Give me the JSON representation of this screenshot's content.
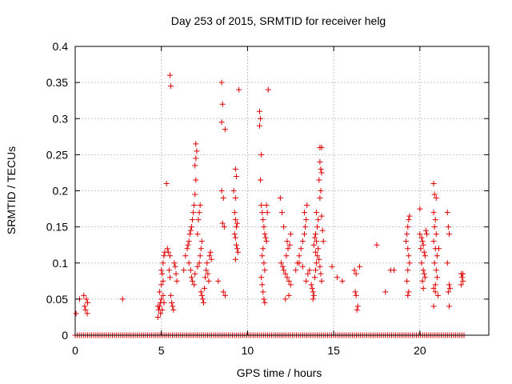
{
  "chart_data": {
    "type": "scatter",
    "title": "Day 253 of 2015, SRMTID for receiver helg",
    "xlabel": "GPS time / hours",
    "ylabel": "SRMTID / TECUs",
    "xlim": [
      0,
      24
    ],
    "ylim": [
      0,
      0.4
    ],
    "xticks": [
      0,
      5,
      10,
      15,
      20
    ],
    "yticks": [
      0,
      0.05,
      0.1,
      0.15,
      0.2,
      0.25,
      0.3,
      0.35,
      0.4
    ],
    "xtick_labels": [
      "0",
      "5",
      "10",
      "15",
      "20"
    ],
    "ytick_labels": [
      "0",
      "0.05",
      "0.1",
      "0.15",
      "0.2",
      "0.25",
      "0.3",
      "0.35",
      "0.4"
    ],
    "grid": true,
    "marker": "+",
    "color": "#dd0000",
    "zero_band": {
      "x_start": 0,
      "x_end": 22.6,
      "step": 0.12,
      "y": 0
    },
    "series": [
      {
        "name": "SRMTID",
        "points": [
          [
            0.05,
            0.03
          ],
          [
            0.25,
            0.05
          ],
          [
            0.5,
            0.055
          ],
          [
            0.55,
            0.04
          ],
          [
            0.6,
            0.035
          ],
          [
            0.65,
            0.05
          ],
          [
            0.7,
            0.03
          ],
          [
            0.72,
            0.045
          ],
          [
            2.75,
            0.05
          ],
          [
            4.8,
            0.025
          ],
          [
            4.85,
            0.035
          ],
          [
            4.9,
            0.04
          ],
          [
            4.95,
            0.045
          ],
          [
            5.0,
            0.05
          ],
          [
            4.9,
            0.06
          ],
          [
            5.0,
            0.07
          ],
          [
            5.1,
            0.075
          ],
          [
            5.05,
            0.085
          ],
          [
            5.0,
            0.09
          ],
          [
            5.1,
            0.1
          ],
          [
            5.15,
            0.11
          ],
          [
            5.2,
            0.115
          ],
          [
            4.95,
            0.03
          ],
          [
            5.05,
            0.035
          ],
          [
            4.8,
            0.04
          ],
          [
            5.15,
            0.045
          ],
          [
            5.1,
            0.055
          ],
          [
            5.3,
            0.21
          ],
          [
            5.5,
            0.36
          ],
          [
            5.55,
            0.345
          ],
          [
            5.35,
            0.12
          ],
          [
            5.4,
            0.115
          ],
          [
            5.5,
            0.11
          ],
          [
            5.45,
            0.09
          ],
          [
            5.5,
            0.08
          ],
          [
            5.55,
            0.055
          ],
          [
            5.6,
            0.045
          ],
          [
            5.65,
            0.04
          ],
          [
            5.7,
            0.035
          ],
          [
            5.75,
            0.1
          ],
          [
            5.8,
            0.095
          ],
          [
            5.85,
            0.085
          ],
          [
            5.9,
            0.075
          ],
          [
            6.3,
            0.09
          ],
          [
            6.4,
            0.11
          ],
          [
            6.5,
            0.12
          ],
          [
            6.55,
            0.125
          ],
          [
            6.6,
            0.13
          ],
          [
            6.65,
            0.14
          ],
          [
            6.7,
            0.145
          ],
          [
            6.75,
            0.15
          ],
          [
            6.8,
            0.16
          ],
          [
            6.85,
            0.17
          ],
          [
            6.9,
            0.18
          ],
          [
            6.95,
            0.195
          ],
          [
            7.0,
            0.215
          ],
          [
            6.95,
            0.235
          ],
          [
            7.0,
            0.245
          ],
          [
            7.05,
            0.255
          ],
          [
            7.0,
            0.265
          ],
          [
            6.6,
            0.1
          ],
          [
            6.7,
            0.09
          ],
          [
            6.75,
            0.08
          ],
          [
            6.8,
            0.075
          ],
          [
            6.9,
            0.07
          ],
          [
            6.95,
            0.085
          ],
          [
            7.1,
            0.095
          ],
          [
            7.2,
            0.1
          ],
          [
            7.25,
            0.11
          ],
          [
            7.3,
            0.12
          ],
          [
            7.35,
            0.13
          ],
          [
            7.1,
            0.14
          ],
          [
            7.15,
            0.16
          ],
          [
            7.2,
            0.17
          ],
          [
            7.25,
            0.18
          ],
          [
            7.3,
            0.06
          ],
          [
            7.35,
            0.055
          ],
          [
            7.4,
            0.05
          ],
          [
            7.45,
            0.045
          ],
          [
            7.5,
            0.065
          ],
          [
            7.55,
            0.08
          ],
          [
            7.6,
            0.09
          ],
          [
            7.65,
            0.1
          ],
          [
            7.7,
            0.085
          ],
          [
            7.75,
            0.075
          ],
          [
            7.8,
            0.11
          ],
          [
            7.85,
            0.115
          ],
          [
            7.9,
            0.105
          ],
          [
            8.3,
            0.075
          ],
          [
            8.5,
            0.35
          ],
          [
            8.55,
            0.32
          ],
          [
            8.5,
            0.295
          ],
          [
            8.7,
            0.285
          ],
          [
            8.5,
            0.2
          ],
          [
            8.6,
            0.19
          ],
          [
            8.55,
            0.155
          ],
          [
            8.65,
            0.15
          ],
          [
            8.6,
            0.06
          ],
          [
            8.7,
            0.055
          ],
          [
            9.2,
            0.2
          ],
          [
            9.3,
            0.23
          ],
          [
            9.35,
            0.22
          ],
          [
            9.3,
            0.19
          ],
          [
            9.25,
            0.17
          ],
          [
            9.3,
            0.16
          ],
          [
            9.4,
            0.155
          ],
          [
            9.35,
            0.15
          ],
          [
            9.25,
            0.14
          ],
          [
            9.3,
            0.135
          ],
          [
            9.35,
            0.125
          ],
          [
            9.4,
            0.12
          ],
          [
            9.45,
            0.115
          ],
          [
            9.3,
            0.105
          ],
          [
            9.5,
            0.34
          ],
          [
            10.7,
            0.31
          ],
          [
            10.75,
            0.3
          ],
          [
            10.7,
            0.29
          ],
          [
            10.8,
            0.25
          ],
          [
            10.75,
            0.215
          ],
          [
            10.8,
            0.18
          ],
          [
            10.85,
            0.17
          ],
          [
            10.9,
            0.16
          ],
          [
            10.95,
            0.15
          ],
          [
            11.0,
            0.14
          ],
          [
            11.05,
            0.135
          ],
          [
            11.1,
            0.13
          ],
          [
            10.9,
            0.12
          ],
          [
            10.85,
            0.11
          ],
          [
            10.95,
            0.1
          ],
          [
            11.0,
            0.09
          ],
          [
            10.8,
            0.08
          ],
          [
            10.85,
            0.07
          ],
          [
            10.9,
            0.06
          ],
          [
            10.95,
            0.05
          ],
          [
            11.0,
            0.045
          ],
          [
            11.1,
            0.18
          ],
          [
            11.15,
            0.17
          ],
          [
            11.2,
            0.34
          ],
          [
            11.9,
            0.19
          ],
          [
            12.0,
            0.17
          ],
          [
            12.1,
            0.15
          ],
          [
            11.95,
            0.1
          ],
          [
            12.05,
            0.095
          ],
          [
            12.1,
            0.09
          ],
          [
            12.2,
            0.085
          ],
          [
            12.3,
            0.08
          ],
          [
            12.4,
            0.075
          ],
          [
            12.5,
            0.07
          ],
          [
            12.25,
            0.11
          ],
          [
            12.35,
            0.12
          ],
          [
            12.45,
            0.125
          ],
          [
            12.3,
            0.13
          ],
          [
            12.5,
            0.14
          ],
          [
            12.2,
            0.05
          ],
          [
            12.4,
            0.055
          ],
          [
            12.8,
            0.09
          ],
          [
            12.9,
            0.1
          ],
          [
            13.0,
            0.11
          ],
          [
            13.1,
            0.12
          ],
          [
            13.2,
            0.13
          ],
          [
            13.3,
            0.14
          ],
          [
            13.35,
            0.15
          ],
          [
            13.4,
            0.16
          ],
          [
            13.3,
            0.17
          ],
          [
            13.45,
            0.18
          ],
          [
            13.0,
            0.1
          ],
          [
            13.2,
            0.095
          ],
          [
            13.5,
            0.085
          ],
          [
            13.6,
            0.09
          ],
          [
            13.4,
            0.075
          ],
          [
            13.7,
            0.07
          ],
          [
            13.75,
            0.065
          ],
          [
            13.8,
            0.06
          ],
          [
            13.85,
            0.055
          ],
          [
            13.8,
            0.05
          ],
          [
            13.9,
            0.08
          ],
          [
            13.95,
            0.09
          ],
          [
            14.0,
            0.1
          ],
          [
            14.05,
            0.11
          ],
          [
            14.1,
            0.12
          ],
          [
            14.0,
            0.13
          ],
          [
            13.95,
            0.14
          ],
          [
            14.05,
            0.15
          ],
          [
            14.1,
            0.16
          ],
          [
            14.0,
            0.17
          ],
          [
            13.9,
            0.135
          ],
          [
            13.85,
            0.125
          ],
          [
            13.95,
            0.115
          ],
          [
            14.15,
            0.105
          ],
          [
            14.2,
            0.095
          ],
          [
            14.25,
            0.085
          ],
          [
            14.3,
            0.075
          ],
          [
            14.2,
            0.26
          ],
          [
            14.3,
            0.26
          ],
          [
            14.2,
            0.24
          ],
          [
            14.25,
            0.23
          ],
          [
            14.3,
            0.225
          ],
          [
            14.15,
            0.215
          ],
          [
            14.25,
            0.2
          ],
          [
            14.2,
            0.19
          ],
          [
            14.3,
            0.165
          ],
          [
            14.35,
            0.145
          ],
          [
            14.4,
            0.13
          ],
          [
            14.9,
            0.095
          ],
          [
            15.2,
            0.08
          ],
          [
            15.5,
            0.075
          ],
          [
            16.2,
            0.09
          ],
          [
            16.3,
            0.085
          ],
          [
            16.25,
            0.06
          ],
          [
            16.3,
            0.055
          ],
          [
            16.4,
            0.04
          ],
          [
            16.35,
            0.035
          ],
          [
            16.5,
            0.095
          ],
          [
            17.5,
            0.125
          ],
          [
            18.0,
            0.06
          ],
          [
            18.3,
            0.09
          ],
          [
            18.5,
            0.09
          ],
          [
            19.2,
            0.13
          ],
          [
            19.25,
            0.14
          ],
          [
            19.3,
            0.15
          ],
          [
            19.35,
            0.16
          ],
          [
            19.4,
            0.165
          ],
          [
            19.3,
            0.12
          ],
          [
            19.35,
            0.11
          ],
          [
            19.4,
            0.1
          ],
          [
            19.3,
            0.09
          ],
          [
            19.25,
            0.075
          ],
          [
            19.35,
            0.06
          ],
          [
            19.3,
            0.055
          ],
          [
            20.0,
            0.14
          ],
          [
            20.1,
            0.135
          ],
          [
            20.15,
            0.13
          ],
          [
            20.2,
            0.125
          ],
          [
            20.05,
            0.12
          ],
          [
            20.25,
            0.115
          ],
          [
            20.3,
            0.11
          ],
          [
            20.1,
            0.1
          ],
          [
            20.2,
            0.09
          ],
          [
            20.25,
            0.085
          ],
          [
            20.3,
            0.08
          ],
          [
            20.15,
            0.075
          ],
          [
            20.2,
            0.065
          ],
          [
            20.35,
            0.145
          ],
          [
            20.4,
            0.14
          ],
          [
            20.0,
            0.175
          ],
          [
            20.8,
            0.21
          ],
          [
            20.85,
            0.195
          ],
          [
            20.95,
            0.19
          ],
          [
            20.8,
            0.17
          ],
          [
            20.9,
            0.16
          ],
          [
            20.85,
            0.15
          ],
          [
            20.95,
            0.14
          ],
          [
            20.8,
            0.13
          ],
          [
            20.9,
            0.12
          ],
          [
            21.0,
            0.11
          ],
          [
            20.85,
            0.1
          ],
          [
            20.95,
            0.09
          ],
          [
            21.0,
            0.08
          ],
          [
            20.9,
            0.07
          ],
          [
            20.8,
            0.065
          ],
          [
            20.9,
            0.06
          ],
          [
            21.05,
            0.055
          ],
          [
            20.8,
            0.04
          ],
          [
            21.1,
            0.12
          ],
          [
            21.6,
            0.17
          ],
          [
            21.65,
            0.15
          ],
          [
            21.7,
            0.14
          ],
          [
            21.6,
            0.1
          ],
          [
            21.7,
            0.07
          ],
          [
            21.75,
            0.065
          ],
          [
            21.65,
            0.06
          ],
          [
            21.7,
            0.04
          ],
          [
            22.4,
            0.085
          ],
          [
            22.45,
            0.08
          ],
          [
            22.5,
            0.075
          ],
          [
            22.4,
            0.07
          ],
          [
            22.5,
            0.085
          ]
        ]
      }
    ]
  }
}
